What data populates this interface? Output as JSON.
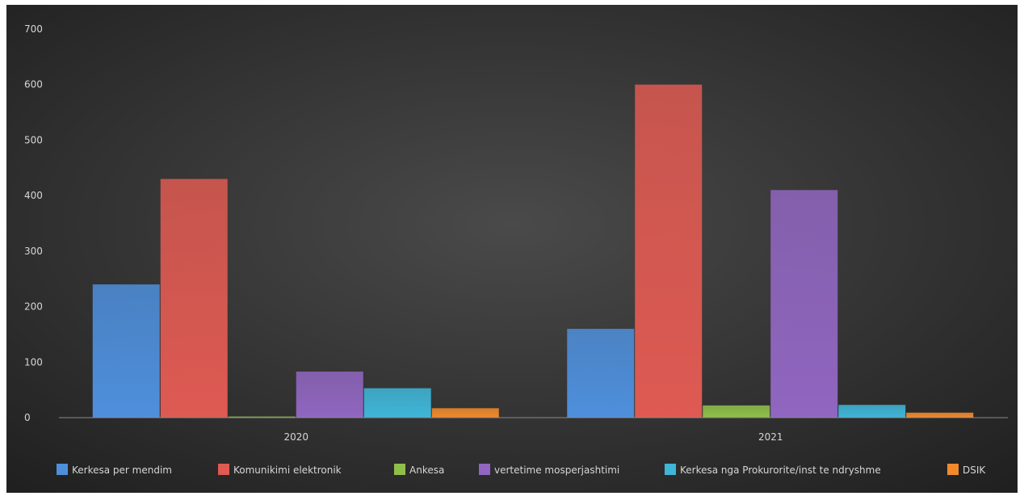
{
  "chart_data": {
    "type": "bar",
    "categories": [
      "2020",
      "2021"
    ],
    "ylim": [
      0,
      700
    ],
    "yticks": [
      0,
      100,
      200,
      300,
      400,
      500,
      600,
      700
    ],
    "grid": false,
    "legend_position": "bottom",
    "series": [
      {
        "name": "Kerkesa per mendim",
        "color": "#4e8fdc",
        "values": [
          240,
          160
        ]
      },
      {
        "name": "Komunikimi elektronik",
        "color": "#de5a52",
        "values": [
          430,
          600
        ]
      },
      {
        "name": "Ankesa",
        "color": "#8fbf4a",
        "values": [
          2,
          22
        ]
      },
      {
        "name": "vertetime mosperjashtimi",
        "color": "#9066c0",
        "values": [
          83,
          410
        ]
      },
      {
        "name": "Kerkesa nga Prokurorite/inst te ndryshme",
        "color": "#3fb6d8",
        "values": [
          53,
          23
        ]
      },
      {
        "name": "DSIK",
        "color": "#f28a2c",
        "values": [
          17,
          9
        ]
      }
    ]
  }
}
